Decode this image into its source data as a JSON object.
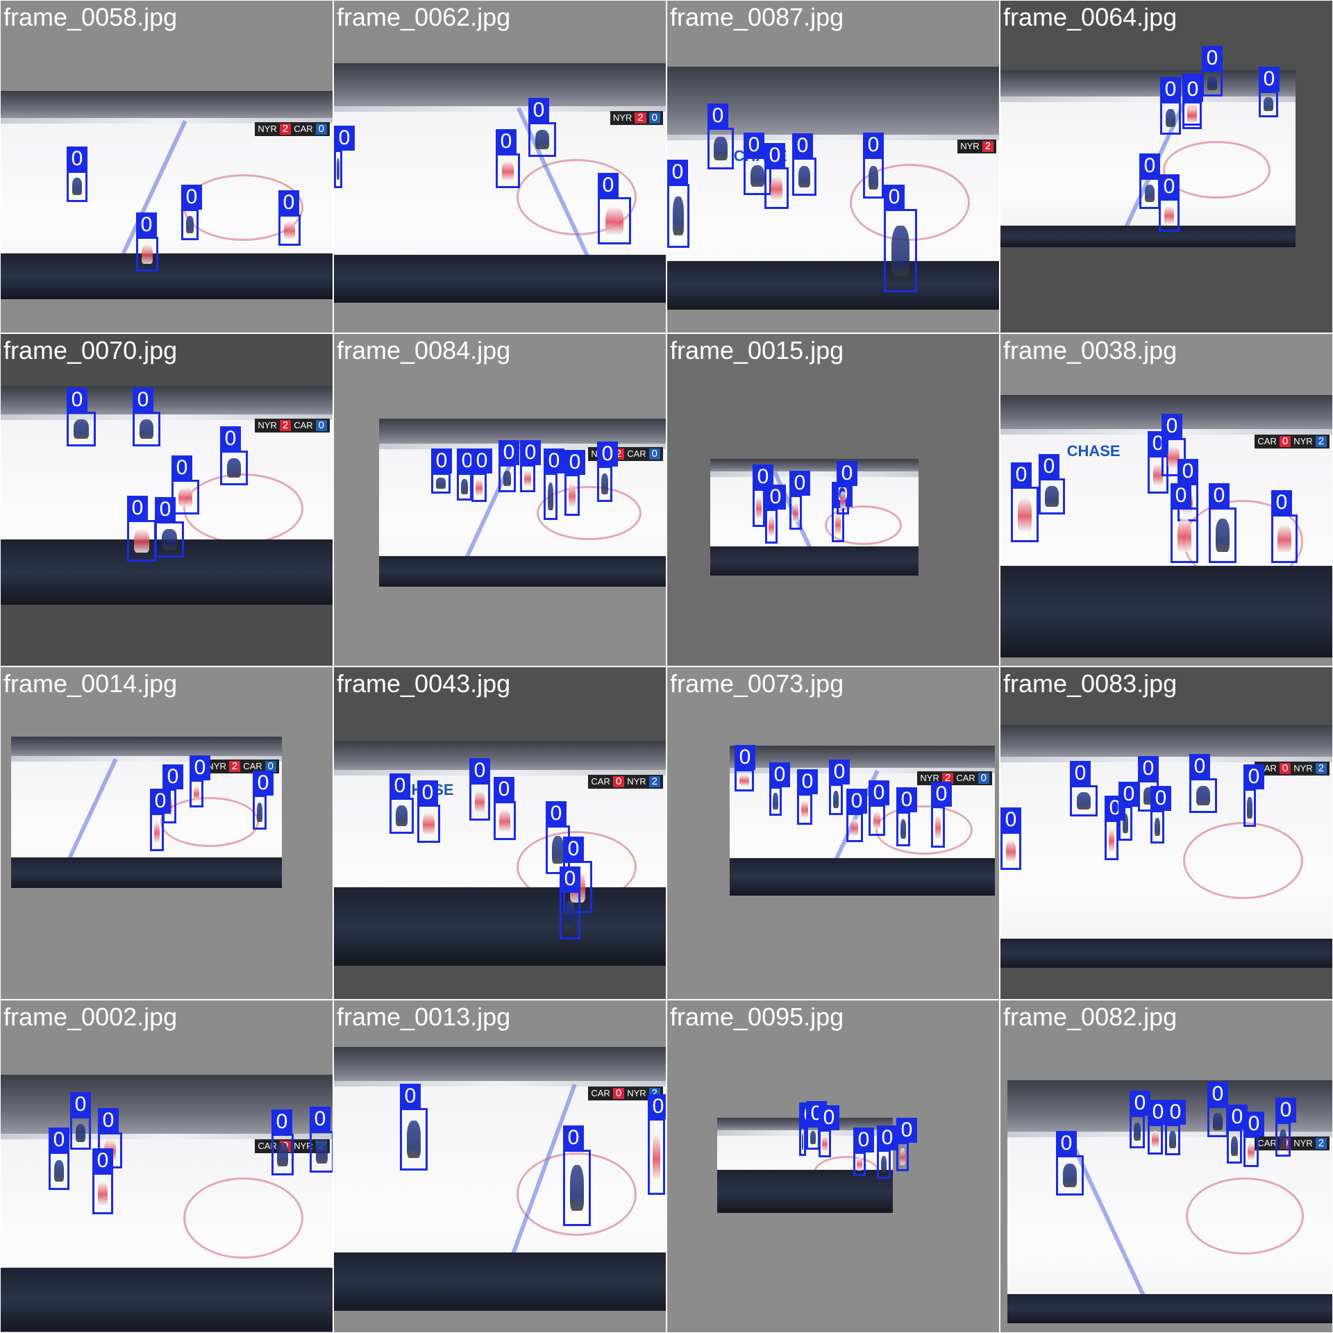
{
  "colors": {
    "box": "#1a2be6",
    "box_label_text": "#ffffff",
    "title_text": "#ffffff"
  },
  "tiles": [
    {
      "title": "frame_0058.jpg",
      "bg": "#8c8c8c",
      "scorebug": {
        "team1": "NYR",
        "score1": "2",
        "team2": "CAR",
        "score2": "0"
      },
      "boxes": [
        {
          "label": "0",
          "team": "blue"
        },
        {
          "label": "0",
          "team": "blue"
        },
        {
          "label": "0",
          "team": "red"
        },
        {
          "label": "0",
          "team": "red"
        }
      ]
    },
    {
      "title": "frame_0062.jpg",
      "bg": "#8c8c8c",
      "scorebug": {
        "team1": "NYR",
        "score1": "2",
        "team2": "",
        "score2": "0"
      },
      "boxes": [
        {
          "label": "0",
          "team": "blue"
        },
        {
          "label": "0",
          "team": "red"
        },
        {
          "label": "0",
          "team": "blue"
        },
        {
          "label": "0",
          "team": "red"
        }
      ]
    },
    {
      "title": "frame_0087.jpg",
      "bg": "#8c8c8c",
      "scorebug": {
        "team1": "NYR",
        "score1": "2",
        "team2": "",
        "score2": ""
      },
      "logo": "CHASE",
      "boxes": [
        {
          "label": "0",
          "team": "blue"
        },
        {
          "label": "0",
          "team": "blue"
        },
        {
          "label": "0",
          "team": "blue"
        },
        {
          "label": "0",
          "team": "red"
        },
        {
          "label": "0",
          "team": "blue"
        },
        {
          "label": "0",
          "team": "blue"
        },
        {
          "label": "0",
          "team": "blue"
        },
        {
          "label": "0",
          "team": "red"
        }
      ]
    },
    {
      "title": "frame_0064.jpg",
      "bg": "#505050",
      "scorebug": null,
      "boxes": [
        {
          "label": "0",
          "team": "blue"
        },
        {
          "label": "0",
          "team": "red"
        },
        {
          "label": "0",
          "team": "blue"
        },
        {
          "label": "0",
          "team": "red"
        },
        {
          "label": "0",
          "team": "blue"
        },
        {
          "label": "0",
          "team": "blue"
        },
        {
          "label": "0",
          "team": "red"
        }
      ]
    },
    {
      "title": "frame_0070.jpg",
      "bg": "#4d4d4d",
      "scorebug": {
        "team1": "NYR",
        "score1": "2",
        "team2": "CAR",
        "score2": "0"
      },
      "boxes": [
        {
          "label": "0",
          "team": "blue"
        },
        {
          "label": "0",
          "team": "blue"
        },
        {
          "label": "0",
          "team": "blue"
        },
        {
          "label": "0",
          "team": "red"
        },
        {
          "label": "0",
          "team": "red"
        },
        {
          "label": "0",
          "team": "blue"
        }
      ]
    },
    {
      "title": "frame_0084.jpg",
      "bg": "#8c8c8c",
      "scorebug": {
        "team1": "NYR",
        "score1": "2",
        "team2": "CAR",
        "score2": "0"
      },
      "boxes": [
        {
          "label": "0",
          "team": "blue"
        },
        {
          "label": "0",
          "team": "blue"
        },
        {
          "label": "0",
          "team": "red"
        },
        {
          "label": "0",
          "team": "blue"
        },
        {
          "label": "0",
          "team": "red"
        },
        {
          "label": "0",
          "team": "blue"
        },
        {
          "label": "0",
          "team": "red"
        },
        {
          "label": "0",
          "team": "blue"
        }
      ]
    },
    {
      "title": "frame_0015.jpg",
      "bg": "#6e6e6e",
      "scorebug": null,
      "boxes": [
        {
          "label": "0",
          "team": "red"
        },
        {
          "label": "0",
          "team": "red"
        },
        {
          "label": "0",
          "team": "red"
        },
        {
          "label": "0",
          "team": "red"
        },
        {
          "label": "0",
          "team": "red"
        }
      ]
    },
    {
      "title": "frame_0038.jpg",
      "bg": "#8c8c8c",
      "scorebug": {
        "team1": "CAR",
        "score1": "0",
        "team2": "NYR",
        "score2": "2"
      },
      "logo": "CHASE",
      "boxes": [
        {
          "label": "0",
          "team": "red"
        },
        {
          "label": "0",
          "team": "blue"
        },
        {
          "label": "0",
          "team": "red"
        },
        {
          "label": "0",
          "team": "red"
        },
        {
          "label": "0",
          "team": "red"
        },
        {
          "label": "0",
          "team": "red"
        },
        {
          "label": "0",
          "team": "blue"
        },
        {
          "label": "0",
          "team": "red"
        }
      ]
    },
    {
      "title": "frame_0014.jpg",
      "bg": "#8c8c8c",
      "scorebug": {
        "team1": "NYR",
        "score1": "2",
        "team2": "CAR",
        "score2": "0"
      },
      "boxes": [
        {
          "label": "0",
          "team": "red"
        },
        {
          "label": "0",
          "team": "red"
        },
        {
          "label": "0",
          "team": "red"
        },
        {
          "label": "0",
          "team": "blue"
        }
      ]
    },
    {
      "title": "frame_0043.jpg",
      "bg": "#505050",
      "scorebug": {
        "team1": "CAR",
        "score1": "0",
        "team2": "NYR",
        "score2": "2"
      },
      "logo": "CHASE",
      "boxes": [
        {
          "label": "0",
          "team": "blue"
        },
        {
          "label": "0",
          "team": "red"
        },
        {
          "label": "0",
          "team": "red"
        },
        {
          "label": "0",
          "team": "red"
        },
        {
          "label": "0",
          "team": "blue"
        },
        {
          "label": "0",
          "team": "red"
        },
        {
          "label": "0",
          "team": "blue"
        }
      ]
    },
    {
      "title": "frame_0073.jpg",
      "bg": "#8c8c8c",
      "scorebug": {
        "team1": "NYR",
        "score1": "2",
        "team2": "CAR",
        "score2": "0"
      },
      "boxes": [
        {
          "label": "0",
          "team": "red"
        },
        {
          "label": "0",
          "team": "blue"
        },
        {
          "label": "0",
          "team": "red"
        },
        {
          "label": "0",
          "team": "blue"
        },
        {
          "label": "0",
          "team": "red"
        },
        {
          "label": "0",
          "team": "red"
        },
        {
          "label": "0",
          "team": "blue"
        },
        {
          "label": "0",
          "team": "red"
        }
      ]
    },
    {
      "title": "frame_0083.jpg",
      "bg": "#505050",
      "scorebug": {
        "team1": "CAR",
        "score1": "0",
        "team2": "NYR",
        "score2": "2"
      },
      "boxes": [
        {
          "label": "0",
          "team": "red"
        },
        {
          "label": "0",
          "team": "blue"
        },
        {
          "label": "0",
          "team": "red"
        },
        {
          "label": "0",
          "team": "blue"
        },
        {
          "label": "0",
          "team": "blue"
        },
        {
          "label": "0",
          "team": "blue"
        },
        {
          "label": "0",
          "team": "blue"
        },
        {
          "label": "0",
          "team": "blue"
        }
      ]
    },
    {
      "title": "frame_0002.jpg",
      "bg": "#8c8c8c",
      "scorebug": {
        "team1": "CAR",
        "score1": "0",
        "team2": "NYR",
        "score2": "2"
      },
      "boxes": [
        {
          "label": "0",
          "team": "blue"
        },
        {
          "label": "0",
          "team": "blue"
        },
        {
          "label": "0",
          "team": "red"
        },
        {
          "label": "0",
          "team": "red"
        },
        {
          "label": "0",
          "team": "blue"
        },
        {
          "label": "0",
          "team": "blue"
        }
      ]
    },
    {
      "title": "frame_0013.jpg",
      "bg": "#8c8c8c",
      "scorebug": {
        "team1": "CAR",
        "score1": "0",
        "team2": "NYR",
        "score2": "2"
      },
      "boxes": [
        {
          "label": "0",
          "team": "blue"
        },
        {
          "label": "0",
          "team": "blue"
        },
        {
          "label": "0",
          "team": "red"
        }
      ]
    },
    {
      "title": "frame_0095.jpg",
      "bg": "#8c8c8c",
      "scorebug": null,
      "boxes": [
        {
          "label": "0",
          "team": "blue"
        },
        {
          "label": "0",
          "team": "blue"
        },
        {
          "label": "0",
          "team": "red"
        },
        {
          "label": "0",
          "team": "red"
        },
        {
          "label": "0",
          "team": "blue"
        },
        {
          "label": "0",
          "team": "red"
        },
        {
          "label": "0",
          "team": "red"
        },
        {
          "label": "0",
          "team": "blue"
        }
      ]
    },
    {
      "title": "frame_0082.jpg",
      "bg": "#8c8c8c",
      "scorebug": {
        "team1": "CAR",
        "score1": "0",
        "team2": "NYR",
        "score2": "2"
      },
      "boxes": [
        {
          "label": "0",
          "team": "blue"
        },
        {
          "label": "0",
          "team": "blue"
        },
        {
          "label": "0",
          "team": "red"
        },
        {
          "label": "0",
          "team": "blue"
        },
        {
          "label": "0",
          "team": "blue"
        },
        {
          "label": "0",
          "team": "blue"
        },
        {
          "label": "0",
          "team": "red"
        },
        {
          "label": "0",
          "team": "blue"
        }
      ]
    }
  ]
}
